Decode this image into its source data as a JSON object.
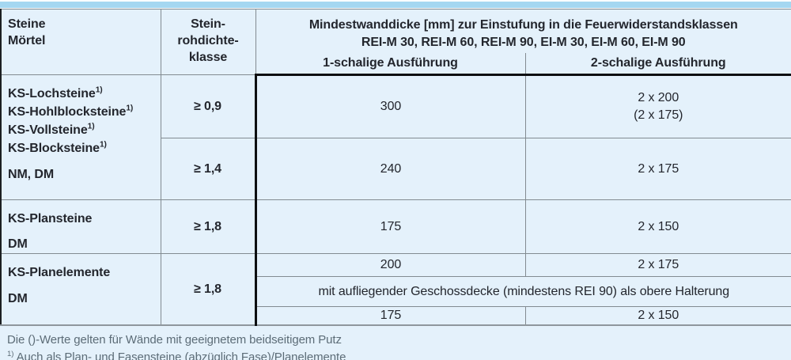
{
  "colors": {
    "accent": "#a5d7f1",
    "cellbg": "#e4f1fb",
    "line": "#828b91",
    "black": "#0d0f11",
    "text": "#23262d",
    "note": "#5c6c77"
  },
  "header": {
    "col1": [
      "Steine",
      "Mörtel"
    ],
    "col2": [
      "Stein-",
      "rohdichte-",
      "klasse"
    ],
    "main_line1": "Mindestwanddicke [mm] zur Einstufung in die Feuerwiderstandsklassen",
    "main_line2": "REI-M 30, REI-M 60, REI-M 90, EI-M 30, EI-M 60, EI-M 90",
    "sub1": "1-schalige Ausführung",
    "sub2": "2-schalige Ausführung"
  },
  "groups": [
    {
      "stones": [
        {
          "text": "KS-Lochsteine",
          "sup": "1)"
        },
        {
          "text": "KS-Hohlblocksteine",
          "sup": "1)"
        },
        {
          "text": "KS-Vollsteine",
          "sup": "1)"
        },
        {
          "text": "KS-Blocksteine",
          "sup": "1)"
        }
      ],
      "mortar": "NM, DM",
      "rows": [
        {
          "density": "≥ 0,9",
          "single": "300",
          "double": "2 x 200",
          "double_note": "(2 x 175)"
        },
        {
          "density": "≥ 1,4",
          "single": "240",
          "double": "2 x 175"
        }
      ]
    },
    {
      "stone": "KS-Plansteine",
      "mortar": "DM",
      "density": "≥ 1,8",
      "single": "175",
      "double": "2 x 150"
    },
    {
      "stone": "KS-Planelemente",
      "mortar": "DM",
      "density": "≥ 1,8",
      "sub_rows": [
        {
          "single": "200",
          "double": "2 x 175"
        },
        {
          "span_note": "mit aufliegender Geschossdecke (mindestens REI 90) als obere Halterung"
        },
        {
          "single": "175",
          "double": "2 x 150"
        }
      ]
    }
  ],
  "footnotes": [
    {
      "text": "Die ()-Werte gelten für Wände mit geeignetem beidseitigem Putz"
    },
    {
      "sup": "1)",
      "text": "Auch als Plan- und Fasensteine (abzüglich Fase)/Planelemente"
    }
  ]
}
